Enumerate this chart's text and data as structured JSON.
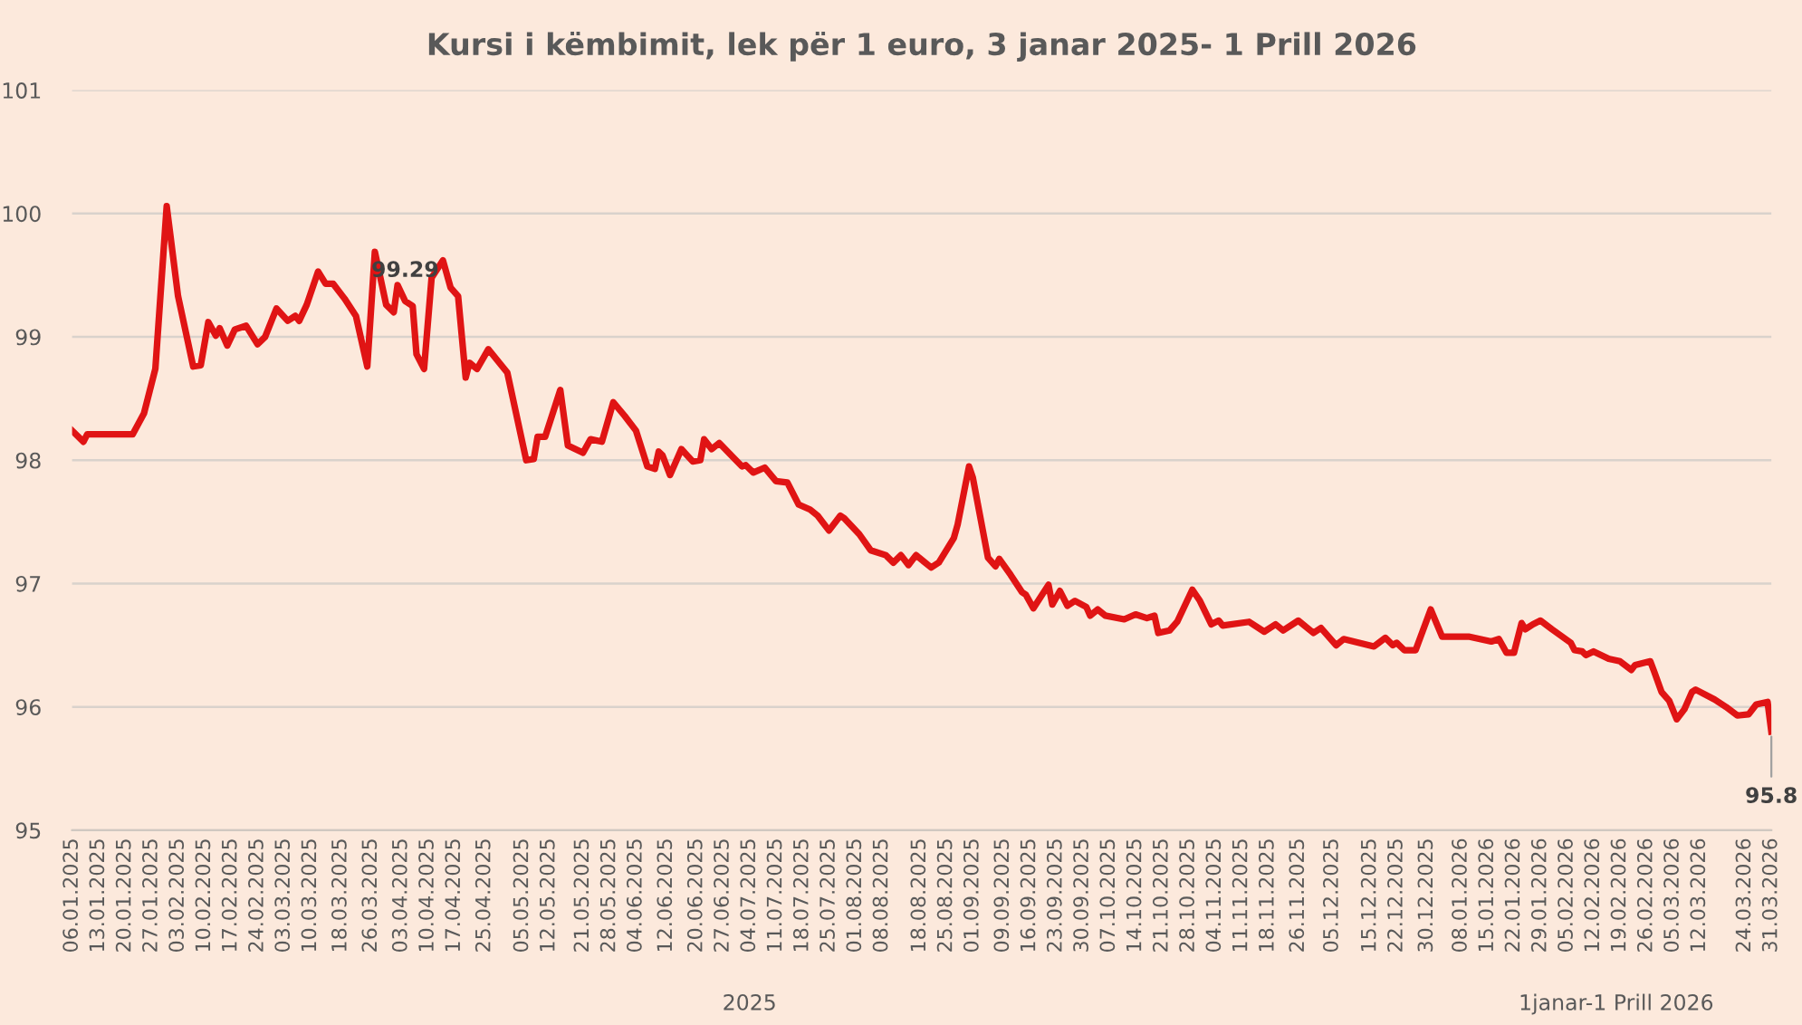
{
  "chart_data": {
    "type": "line",
    "title": "Kursi i këmbimit, lek për 1 euro, 3 janar 2025- 1 Prill 2026",
    "x": [
      "2025-01-06",
      "2025-01-09",
      "2025-01-10",
      "2025-01-22",
      "2025-01-25",
      "2025-01-28",
      "2025-01-31",
      "2025-02-03",
      "2025-02-07",
      "2025-02-09",
      "2025-02-11",
      "2025-02-13",
      "2025-02-14",
      "2025-02-16",
      "2025-02-18",
      "2025-02-21",
      "2025-02-24",
      "2025-02-26",
      "2025-03-01",
      "2025-03-04",
      "2025-03-06",
      "2025-03-07",
      "2025-03-09",
      "2025-03-12",
      "2025-03-14",
      "2025-03-16",
      "2025-03-19",
      "2025-03-22",
      "2025-03-25",
      "2025-03-27",
      "2025-03-30",
      "2025-04-01",
      "2025-04-02",
      "2025-04-04",
      "2025-04-06",
      "2025-04-07",
      "2025-04-09",
      "2025-04-11",
      "2025-04-14",
      "2025-04-16",
      "2025-04-18",
      "2025-04-20",
      "2025-04-21",
      "2025-04-23",
      "2025-04-26",
      "2025-05-01",
      "2025-05-06",
      "2025-05-08",
      "2025-05-09",
      "2025-05-11",
      "2025-05-15",
      "2025-05-17",
      "2025-05-21",
      "2025-05-23",
      "2025-05-26",
      "2025-05-29",
      "2025-06-01",
      "2025-06-04",
      "2025-06-07",
      "2025-06-09",
      "2025-06-10",
      "2025-06-11",
      "2025-06-13",
      "2025-06-16",
      "2025-06-19",
      "2025-06-21",
      "2025-06-22",
      "2025-06-24",
      "2025-06-26",
      "2025-07-02",
      "2025-07-03",
      "2025-07-05",
      "2025-07-08",
      "2025-07-11",
      "2025-07-14",
      "2025-07-17",
      "2025-07-20",
      "2025-07-22",
      "2025-07-25",
      "2025-07-28",
      "2025-07-29",
      "2025-08-02",
      "2025-08-05",
      "2025-08-09",
      "2025-08-11",
      "2025-08-13",
      "2025-08-15",
      "2025-08-17",
      "2025-08-21",
      "2025-08-23",
      "2025-08-27",
      "2025-08-28",
      "2025-08-31",
      "2025-09-01",
      "2025-09-05",
      "2025-09-07",
      "2025-09-08",
      "2025-09-11",
      "2025-09-14",
      "2025-09-15",
      "2025-09-17",
      "2025-09-21",
      "2025-09-22",
      "2025-09-24",
      "2025-09-26",
      "2025-09-28",
      "2025-10-01",
      "2025-10-02",
      "2025-10-04",
      "2025-10-06",
      "2025-10-11",
      "2025-10-14",
      "2025-10-17",
      "2025-10-19",
      "2025-10-20",
      "2025-10-23",
      "2025-10-25",
      "2025-10-29",
      "2025-10-31",
      "2025-11-03",
      "2025-11-05",
      "2025-11-06",
      "2025-11-13",
      "2025-11-17",
      "2025-11-20",
      "2025-11-22",
      "2025-11-26",
      "2025-11-30",
      "2025-12-02",
      "2025-12-06",
      "2025-12-08",
      "2025-12-16",
      "2025-12-19",
      "2025-12-21",
      "2025-12-22",
      "2025-12-24",
      "2025-12-27",
      "2025-12-31",
      "2026-01-03",
      "2026-01-10",
      "2026-01-16",
      "2026-01-18",
      "2026-01-20",
      "2026-01-22",
      "2026-01-24",
      "2026-01-25",
      "2026-01-27",
      "2026-01-29",
      "2026-02-01",
      "2026-02-06",
      "2026-02-07",
      "2026-02-09",
      "2026-02-10",
      "2026-02-12",
      "2026-02-16",
      "2026-02-19",
      "2026-02-22",
      "2026-02-23",
      "2026-02-27",
      "2026-02-28",
      "2026-03-02",
      "2026-03-04",
      "2026-03-06",
      "2026-03-08",
      "2026-03-10",
      "2026-03-11",
      "2026-03-16",
      "2026-03-19",
      "2026-03-22",
      "2026-03-25",
      "2026-03-27",
      "2026-03-30",
      "2026-03-31"
    ],
    "series": [
      {
        "color": "#e01414",
        "values": [
          98.24,
          98.15,
          98.21,
          98.21,
          98.38,
          98.74,
          100.06,
          99.33,
          98.76,
          98.77,
          99.12,
          99.01,
          99.07,
          98.93,
          99.06,
          99.09,
          98.94,
          99.0,
          99.23,
          99.13,
          99.17,
          99.13,
          99.26,
          99.53,
          99.43,
          99.43,
          99.31,
          99.17,
          98.76,
          99.69,
          99.26,
          99.2,
          99.42,
          99.29,
          99.25,
          98.86,
          98.74,
          99.48,
          99.62,
          99.4,
          99.33,
          98.67,
          98.79,
          98.74,
          98.9,
          98.71,
          98.0,
          98.01,
          98.19,
          98.19,
          98.57,
          98.12,
          98.06,
          98.17,
          98.15,
          98.47,
          98.36,
          98.24,
          97.95,
          97.93,
          98.07,
          98.04,
          97.88,
          98.09,
          97.99,
          98.0,
          98.17,
          98.09,
          98.14,
          97.95,
          97.96,
          97.9,
          97.94,
          97.83,
          97.82,
          97.64,
          97.6,
          97.55,
          97.43,
          97.55,
          97.53,
          97.4,
          97.27,
          97.23,
          97.17,
          97.23,
          97.15,
          97.23,
          97.13,
          97.17,
          97.37,
          97.48,
          97.95,
          97.86,
          97.21,
          97.14,
          97.2,
          97.07,
          96.93,
          96.91,
          96.8,
          96.99,
          96.83,
          96.94,
          96.82,
          96.86,
          96.81,
          96.74,
          96.79,
          96.74,
          96.71,
          96.75,
          96.72,
          96.74,
          96.6,
          96.62,
          96.69,
          96.95,
          96.86,
          96.67,
          96.7,
          96.66,
          96.69,
          96.61,
          96.67,
          96.62,
          96.7,
          96.6,
          96.64,
          96.5,
          96.55,
          96.49,
          96.56,
          96.5,
          96.52,
          96.46,
          96.46,
          96.79,
          96.57,
          96.57,
          96.53,
          96.55,
          96.44,
          96.44,
          96.68,
          96.63,
          96.67,
          96.7,
          96.63,
          96.52,
          96.46,
          96.45,
          96.42,
          96.45,
          96.39,
          96.37,
          96.3,
          96.34,
          96.37,
          96.29,
          96.12,
          96.05,
          95.9,
          95.98,
          96.12,
          96.14,
          96.06,
          96.0,
          95.93,
          95.94,
          96.02,
          96.04,
          95.8
        ]
      }
    ],
    "xlim": [
      "2025-01-06",
      "2026-03-31"
    ],
    "xticks": [
      {
        "value": "2025-01-06",
        "label": "06.01.2025"
      },
      {
        "value": "2025-01-13",
        "label": "13.01.2025"
      },
      {
        "value": "2025-01-20",
        "label": "20.01.2025"
      },
      {
        "value": "2025-01-27",
        "label": "27.01.2025"
      },
      {
        "value": "2025-02-03",
        "label": "03.02.2025"
      },
      {
        "value": "2025-02-10",
        "label": "10.02.2025"
      },
      {
        "value": "2025-02-17",
        "label": "17.02.2025"
      },
      {
        "value": "2025-02-24",
        "label": "24.02.2025"
      },
      {
        "value": "2025-03-03",
        "label": "03.03.2025"
      },
      {
        "value": "2025-03-10",
        "label": "10.03.2025"
      },
      {
        "value": "2025-03-18",
        "label": "18.03.2025"
      },
      {
        "value": "2025-03-26",
        "label": "26.03.2025"
      },
      {
        "value": "2025-04-03",
        "label": "03.04.2025"
      },
      {
        "value": "2025-04-10",
        "label": "10.04.2025"
      },
      {
        "value": "2025-04-17",
        "label": "17.04.2025"
      },
      {
        "value": "2025-04-25",
        "label": "25.04.2025"
      },
      {
        "value": "2025-05-05",
        "label": "05.05.2025"
      },
      {
        "value": "2025-05-12",
        "label": "12.05.2025"
      },
      {
        "value": "2025-05-21",
        "label": "21.05.2025"
      },
      {
        "value": "2025-05-28",
        "label": "28.05.2025"
      },
      {
        "value": "2025-06-04",
        "label": "04.06.2025"
      },
      {
        "value": "2025-06-12",
        "label": "12.06.2025"
      },
      {
        "value": "2025-06-20",
        "label": "20.06.2025"
      },
      {
        "value": "2025-06-27",
        "label": "27.06.2025"
      },
      {
        "value": "2025-07-04",
        "label": "04.07.2025"
      },
      {
        "value": "2025-07-11",
        "label": "11.07.2025"
      },
      {
        "value": "2025-07-18",
        "label": "18.07.2025"
      },
      {
        "value": "2025-07-25",
        "label": "25.07.2025"
      },
      {
        "value": "2025-08-01",
        "label": "01.08.2025"
      },
      {
        "value": "2025-08-08",
        "label": "08.08.2025"
      },
      {
        "value": "2025-08-18",
        "label": "18.08.2025"
      },
      {
        "value": "2025-08-25",
        "label": "25.08.2025"
      },
      {
        "value": "2025-09-01",
        "label": "01.09.2025"
      },
      {
        "value": "2025-09-09",
        "label": "09.09.2025"
      },
      {
        "value": "2025-09-16",
        "label": "16.09.2025"
      },
      {
        "value": "2025-09-23",
        "label": "23.09.2025"
      },
      {
        "value": "2025-09-30",
        "label": "30.09.2025"
      },
      {
        "value": "2025-10-07",
        "label": "07.10.2025"
      },
      {
        "value": "2025-10-14",
        "label": "14.10.2025"
      },
      {
        "value": "2025-10-21",
        "label": "21.10.2025"
      },
      {
        "value": "2025-10-28",
        "label": "28.10.2025"
      },
      {
        "value": "2025-11-04",
        "label": "04.11.2025"
      },
      {
        "value": "2025-11-11",
        "label": "11.11.2025"
      },
      {
        "value": "2025-11-18",
        "label": "18.11.2025"
      },
      {
        "value": "2025-11-26",
        "label": "26.11.2025"
      },
      {
        "value": "2025-12-05",
        "label": "05.12.2025"
      },
      {
        "value": "2025-12-15",
        "label": "15.12.2025"
      },
      {
        "value": "2025-12-22",
        "label": "22.12.2025"
      },
      {
        "value": "2025-12-30",
        "label": "30.12.2025"
      },
      {
        "value": "2026-01-08",
        "label": "08.01.2026"
      },
      {
        "value": "2026-01-15",
        "label": "15.01.2026"
      },
      {
        "value": "2026-01-22",
        "label": "22.01.2026"
      },
      {
        "value": "2026-01-29",
        "label": "29.01.2026"
      },
      {
        "value": "2026-02-05",
        "label": "05.02.2026"
      },
      {
        "value": "2026-02-12",
        "label": "12.02.2026"
      },
      {
        "value": "2026-02-19",
        "label": "19.02.2026"
      },
      {
        "value": "2026-02-26",
        "label": "26.02.2026"
      },
      {
        "value": "2026-03-05",
        "label": "05.03.2026"
      },
      {
        "value": "2026-03-12",
        "label": "12.03.2026"
      },
      {
        "value": "2026-03-24",
        "label": "24.03.2026"
      },
      {
        "value": "2026-03-31",
        "label": "31.03.2026"
      }
    ],
    "ylim": [
      95,
      101
    ],
    "yticks": [
      95,
      96,
      97,
      98,
      99,
      100,
      101
    ],
    "grid": "y",
    "legend": false,
    "marker": "none",
    "line_style": "solid",
    "annotations": [
      {
        "text": "99.29",
        "x": "2025-04-04",
        "y": 99.29
      },
      {
        "text": "95.8",
        "x": "2026-03-31",
        "y": 95.8
      },
      "2025",
      "1janar-1 Prill 2026"
    ]
  }
}
